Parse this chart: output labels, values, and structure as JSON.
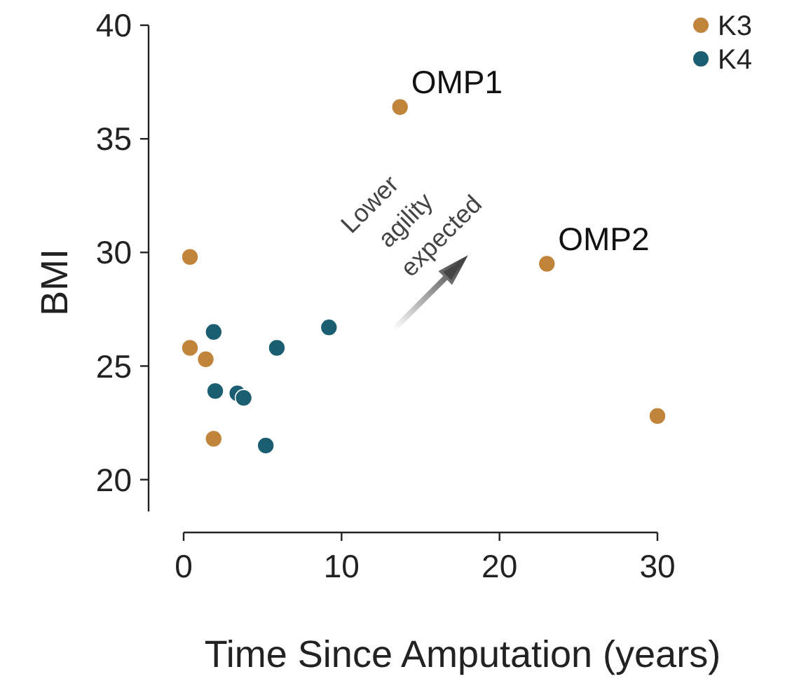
{
  "chart_data": {
    "type": "scatter",
    "xlabel": "Time Since Amputation (years)",
    "ylabel": "BMI",
    "xlim": [
      0,
      30
    ],
    "xticks": [
      0,
      10,
      20,
      30
    ],
    "ylim": [
      18.6,
      40
    ],
    "yticks": [
      20,
      25,
      30,
      35,
      40
    ],
    "grid": false,
    "legend": "top right",
    "marker": "circle",
    "series": [
      {
        "name": "K3",
        "color": "#c0843a",
        "x": [
          0.4,
          0.4,
          1.4,
          1.9,
          13.7,
          23.0,
          30.0
        ],
        "values": [
          29.8,
          25.8,
          25.3,
          21.8,
          36.4,
          29.5,
          22.8
        ]
      },
      {
        "name": "K4",
        "color": "#1b5e72",
        "x": [
          1.9,
          5.9,
          9.2,
          2.0,
          3.4,
          3.8,
          5.2
        ],
        "values": [
          26.5,
          25.8,
          26.7,
          23.9,
          23.8,
          23.6,
          21.5
        ]
      }
    ],
    "annotations": [
      {
        "text": "OMP1",
        "x": 13.7,
        "y": 36.4
      },
      {
        "text": "OMP2",
        "x": 23.0,
        "y": 29.5
      },
      "Lower agility expected"
    ]
  }
}
